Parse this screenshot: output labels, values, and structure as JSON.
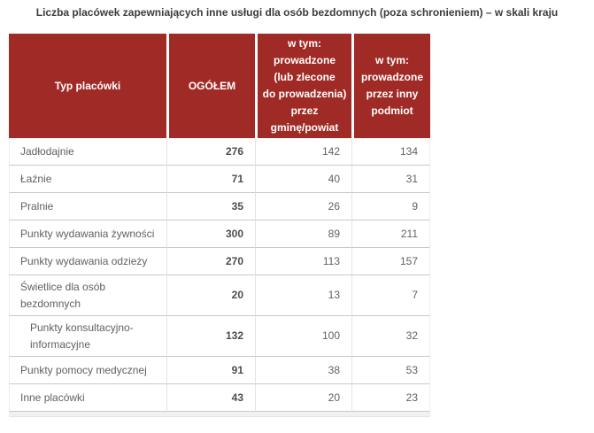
{
  "title": "Liczba placówek zapewniających inne usługi dla osób bezdomnych (poza schronieniem) – w skali kraju",
  "colors": {
    "header_bg": "#a02b26",
    "header_text": "#ffffff",
    "row_border": "#c9c9c9",
    "body_text": "#616161"
  },
  "table": {
    "headers": {
      "col1": "Typ placówki",
      "col2": "OGÓŁEM",
      "col3": "w tym:\nprowadzone\n(lub zlecone\ndo prowadzenia)\nprzez\ngminę/powiat",
      "col4": "w tym:\nprowadzone\nprzez inny\npodmiot"
    },
    "rows": [
      {
        "label": "Jadłodajnie",
        "total": "276",
        "by_gmina": "142",
        "by_other": "134",
        "indent": false,
        "two_line": false
      },
      {
        "label": "Łaźnie",
        "total": "71",
        "by_gmina": "40",
        "by_other": "31",
        "indent": false,
        "two_line": false
      },
      {
        "label": "Pralnie",
        "total": "35",
        "by_gmina": "26",
        "by_other": "9",
        "indent": false,
        "two_line": false
      },
      {
        "label": "Punkty wydawania żywności",
        "total": "300",
        "by_gmina": "89",
        "by_other": "211",
        "indent": false,
        "two_line": false
      },
      {
        "label": "Punkty wydawania odzieży",
        "total": "270",
        "by_gmina": "113",
        "by_other": "157",
        "indent": false,
        "two_line": false
      },
      {
        "label": "Świetlice dla osób bezdomnych",
        "total": "20",
        "by_gmina": "13",
        "by_other": "7",
        "indent": false,
        "two_line": true
      },
      {
        "label": "Punkty konsultacyjno-informacyjne",
        "total": "132",
        "by_gmina": "100",
        "by_other": "32",
        "indent": true,
        "two_line": true
      },
      {
        "label": "Punkty pomocy medycznej",
        "total": "91",
        "by_gmina": "38",
        "by_other": "53",
        "indent": false,
        "two_line": false
      },
      {
        "label": "Inne placówki",
        "total": "43",
        "by_gmina": "20",
        "by_other": "23",
        "indent": false,
        "two_line": false
      }
    ]
  },
  "chart_data": {
    "type": "table",
    "title": "Liczba placówek zapewniających inne usługi dla osób bezdomnych (poza schronieniem) – w skali kraju",
    "columns": [
      "Typ placówki",
      "OGÓŁEM",
      "w tym: prowadzone (lub zlecone do prowadzenia) przez gminę/powiat",
      "w tym: prowadzone przez inny podmiot"
    ],
    "rows": [
      [
        "Jadłodajnie",
        276,
        142,
        134
      ],
      [
        "Łaźnie",
        71,
        40,
        31
      ],
      [
        "Pralnie",
        35,
        26,
        9
      ],
      [
        "Punkty wydawania żywności",
        300,
        89,
        211
      ],
      [
        "Punkty wydawania odzieży",
        270,
        113,
        157
      ],
      [
        "Świetlice dla osób bezdomnych",
        20,
        13,
        7
      ],
      [
        "Punkty konsultacyjno-informacyjne",
        132,
        100,
        32
      ],
      [
        "Punkty pomocy medycznej",
        91,
        38,
        53
      ],
      [
        "Inne placówki",
        43,
        20,
        23
      ]
    ],
    "layout": "header row dark red with white bold centered text; first column left-aligned labels; numeric columns right-aligned; OGÓŁEM column bold"
  }
}
